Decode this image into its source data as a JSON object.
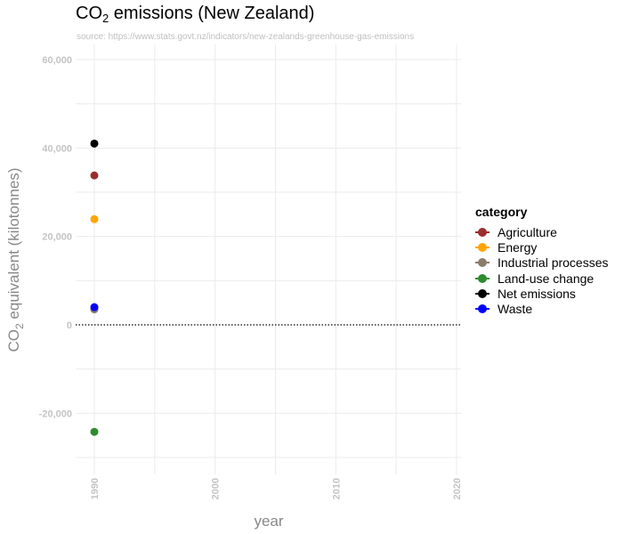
{
  "chart_data": {
    "type": "scatter",
    "title_main": "CO",
    "title_sub": "2",
    "title_rest": " emissions (New Zealand)",
    "subtitle": "source: https://www.stats.govt.nz/indicators/new-zealands-greenhouse-gas-emissions",
    "xlabel": "year",
    "ylabel_main": "CO",
    "ylabel_sub": "2",
    "ylabel_rest": " equivalent (kilotonnes)",
    "xlim": [
      1989,
      2021
    ],
    "ylim": [
      -30000,
      60000
    ],
    "x_ticks": [
      1990,
      2000,
      2010,
      2020
    ],
    "x_tick_labels": [
      "1990",
      "2000",
      "2010",
      "2020"
    ],
    "y_ticks": [
      -20000,
      0,
      20000,
      40000,
      60000
    ],
    "y_tick_labels": [
      "-20,000",
      "0",
      "20,000",
      "40,000",
      "60,000"
    ],
    "grid": true,
    "reference_line": {
      "y": 0,
      "style": "dotted"
    },
    "legend": {
      "title": "category",
      "position": "right"
    },
    "series": [
      {
        "name": "Agriculture",
        "color": "#9b2d2d",
        "points": [
          {
            "x": 1990,
            "y": 33800
          }
        ]
      },
      {
        "name": "Energy",
        "color": "#ffa500",
        "points": [
          {
            "x": 1990,
            "y": 23900
          }
        ]
      },
      {
        "name": "Industrial processes",
        "color": "#8b7d6b",
        "points": [
          {
            "x": 1990,
            "y": 3500
          }
        ]
      },
      {
        "name": "Land-use change",
        "color": "#2e8b2e",
        "points": [
          {
            "x": 1990,
            "y": -24200
          }
        ]
      },
      {
        "name": "Net emissions",
        "color": "#000000",
        "points": [
          {
            "x": 1990,
            "y": 41000
          }
        ]
      },
      {
        "name": "Waste",
        "color": "#0000ff",
        "points": [
          {
            "x": 1990,
            "y": 4000
          }
        ]
      }
    ]
  }
}
